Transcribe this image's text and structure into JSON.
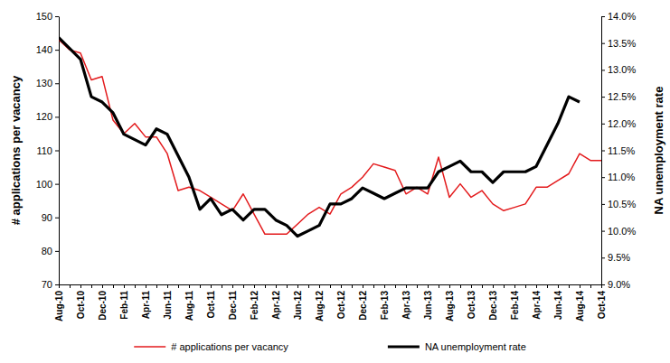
{
  "chart_data": {
    "type": "line",
    "categories": [
      "Aug-10",
      null,
      "Oct-10",
      null,
      "Dec-10",
      null,
      "Feb-11",
      null,
      "Apr-11",
      null,
      "Jun-11",
      null,
      "Aug-11",
      null,
      "Oct-11",
      null,
      "Dec-11",
      null,
      "Feb-12",
      null,
      "Apr-12",
      null,
      "Jun-12",
      null,
      "Aug-12",
      null,
      "Oct-12",
      null,
      "Dec-12",
      null,
      "Feb-13",
      null,
      "Apr-13",
      null,
      "Jun-13",
      null,
      "Aug-13",
      null,
      "Oct-13",
      null,
      "Dec-13",
      null,
      "Feb-14",
      null,
      "Apr-14",
      null,
      "Jun-14",
      null,
      "Aug-14",
      null,
      "Oct-14"
    ],
    "series": [
      {
        "name": "# applications per vacancy",
        "color": "#e31a1c",
        "line_style": "solid",
        "values": [
          143,
          140,
          139,
          131,
          132,
          119,
          115,
          118,
          114,
          114,
          109,
          98,
          99,
          98,
          96,
          94,
          92,
          97,
          91,
          85,
          85,
          85,
          88,
          91,
          93,
          91,
          97,
          99,
          102,
          106,
          105,
          104,
          97,
          99,
          97,
          108,
          96,
          100,
          96,
          98,
          94,
          92,
          93,
          94,
          99,
          99,
          101,
          103,
          109,
          107,
          107
        ]
      },
      {
        "name": "NA unemployment rate",
        "color": "#000000",
        "line_style": "thick",
        "axis": "y2",
        "values": [
          13.6,
          13.4,
          13.2,
          12.5,
          12.4,
          12.2,
          11.8,
          11.7,
          11.6,
          11.9,
          11.8,
          11.4,
          11.0,
          10.4,
          10.6,
          10.3,
          10.4,
          10.2,
          10.4,
          10.4,
          10.2,
          10.1,
          9.9,
          10.0,
          10.1,
          10.5,
          10.5,
          10.6,
          10.8,
          10.7,
          10.6,
          10.7,
          10.8,
          10.8,
          10.8,
          11.1,
          11.2,
          11.3,
          11.1,
          11.1,
          10.9,
          11.1,
          11.1,
          11.1,
          11.2,
          11.6,
          12.0,
          12.5,
          12.4,
          null,
          null
        ]
      }
    ],
    "y_label": "# applications per vacancy",
    "y2_label": "NA unemployment rate",
    "ylim": [
      70,
      150
    ],
    "yticks": [
      70,
      80,
      90,
      100,
      110,
      120,
      130,
      140,
      150
    ],
    "y2lim": [
      9,
      14
    ],
    "y2ticks": [
      {
        "value": 9,
        "label": "9.0%"
      },
      {
        "value": 9.5,
        "label": "9.5%"
      },
      {
        "value": 10,
        "label": "10.0%"
      },
      {
        "value": 10.5,
        "label": "10.5%"
      },
      {
        "value": 11,
        "label": "11.0%"
      },
      {
        "value": 11.5,
        "label": "11.5%"
      },
      {
        "value": 12,
        "label": "12.0%"
      },
      {
        "value": 12.5,
        "label": "12.5%"
      },
      {
        "value": 13,
        "label": "13.0%"
      },
      {
        "value": 13.5,
        "label": "13.5%"
      },
      {
        "value": 14,
        "label": "14.0%"
      }
    ],
    "legend": "bottom",
    "grid": false
  }
}
